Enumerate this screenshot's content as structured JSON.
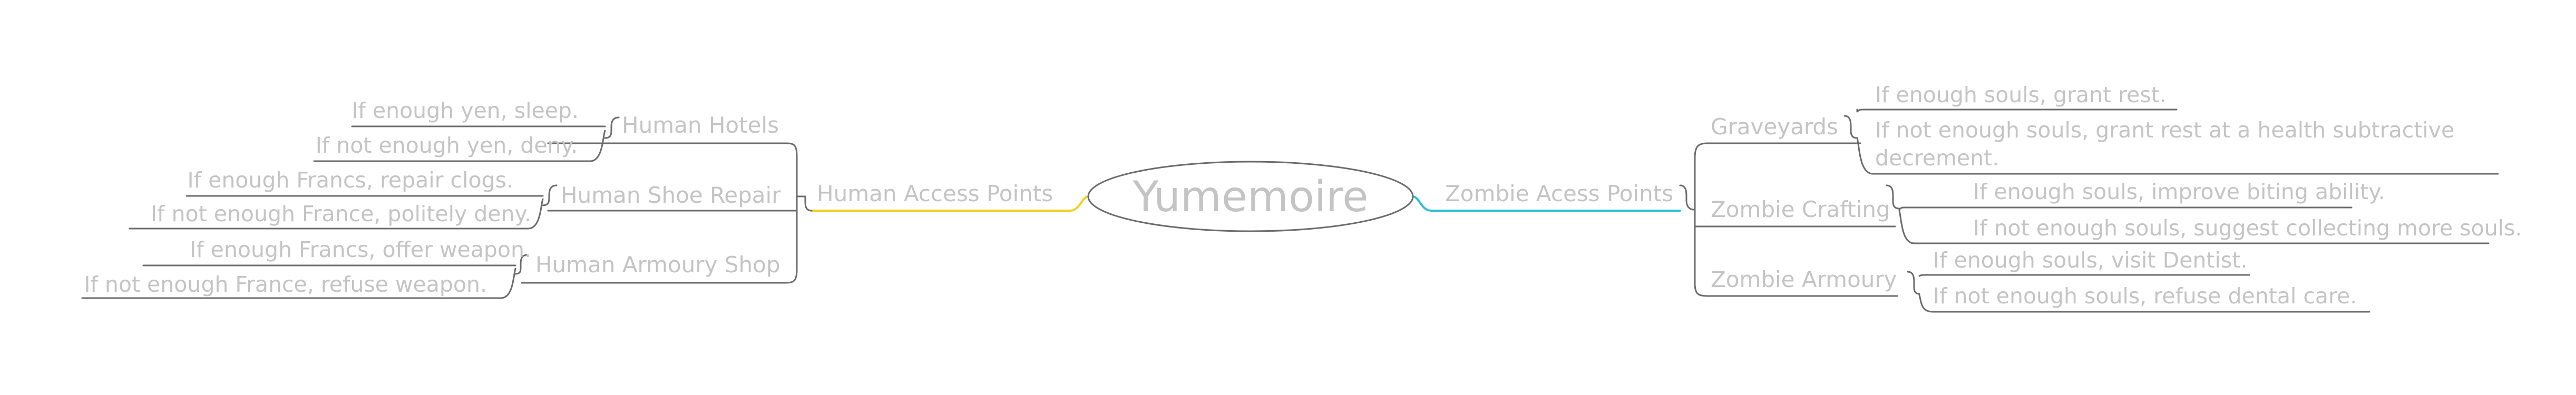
{
  "center": {
    "label": "Yumemoire"
  },
  "left": {
    "label": "Human Access Points",
    "color": "#f2cf1d",
    "branches": [
      {
        "label": "Human Hotels",
        "leaves": [
          "If enough yen, sleep.",
          "If not enough yen, deny."
        ]
      },
      {
        "label": "Human Shoe Repair",
        "leaves": [
          "If enough Francs, repair clogs.",
          "If not enough France, politely deny."
        ]
      },
      {
        "label": "Human Armoury Shop",
        "leaves": [
          "If enough Francs, offer weapon.",
          "If not enough France, refuse weapon."
        ]
      }
    ]
  },
  "right": {
    "label": "Zombie Acess Points",
    "color": "#2bbfd2",
    "branches": [
      {
        "label": "Graveyards",
        "leaves": [
          "If enough souls, grant rest.",
          "If not enough souls, grant rest at a health subtractive",
          "decrement."
        ]
      },
      {
        "label": "Zombie Crafting",
        "leaves": [
          "If enough souls, improve biting ability.",
          "If not enough souls, suggest collecting more souls."
        ]
      },
      {
        "label": "Zombie Armoury",
        "leaves": [
          "If enough souls, visit Dentist.",
          "If not enough souls, refuse dental care."
        ]
      }
    ]
  }
}
